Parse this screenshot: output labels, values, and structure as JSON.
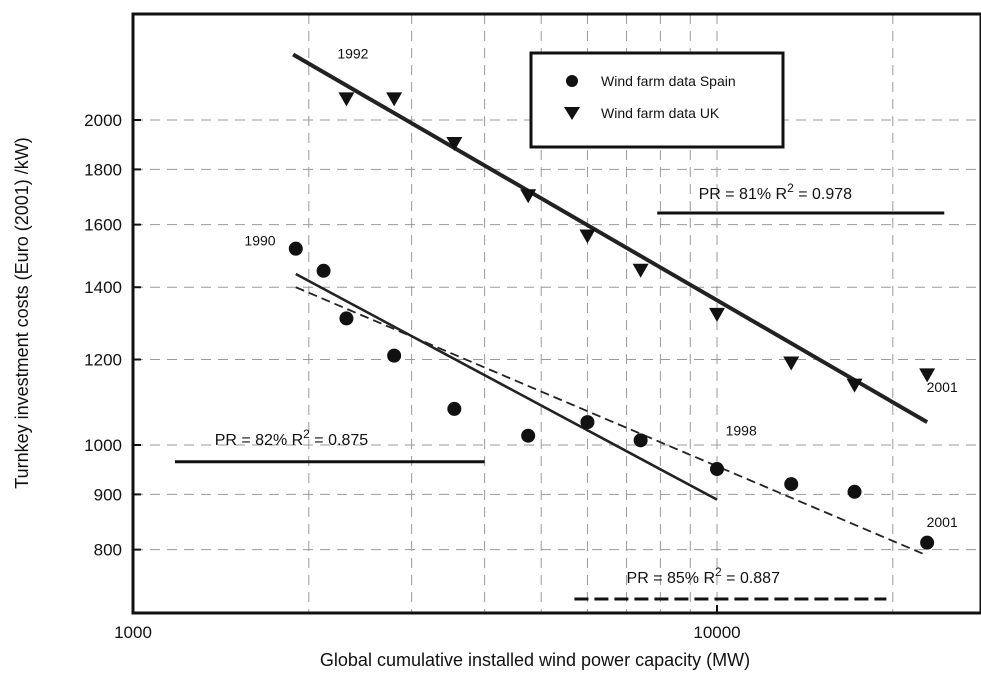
{
  "chart_data": {
    "type": "scatter",
    "xlabel": "Global cumulative installed wind power capacity (MW)",
    "ylabel": "Turnkey investment costs (Euro (2001) /kW)",
    "xscale": "log",
    "yscale": "log",
    "xlim": [
      1000,
      26000
    ],
    "ylim": [
      700,
      2400
    ],
    "grid": true,
    "legend_position": "top-center",
    "x_ticks": [
      {
        "value": 1000,
        "label": "1000"
      },
      {
        "value": 10000,
        "label": "10000"
      }
    ],
    "y_ticks": [
      {
        "value": 800,
        "label": "800"
      },
      {
        "value": 900,
        "label": "900"
      },
      {
        "value": 1000,
        "label": "1000"
      },
      {
        "value": 1200,
        "label": "1200"
      },
      {
        "value": 1400,
        "label": "1400"
      },
      {
        "value": 1600,
        "label": "1600"
      },
      {
        "value": 1800,
        "label": "1800"
      },
      {
        "value": 2000,
        "label": "2000"
      }
    ],
    "series": [
      {
        "name": "Wind farm data Spain",
        "marker": "circle",
        "points": [
          {
            "x": 1900,
            "y": 1520
          },
          {
            "x": 2120,
            "y": 1450
          },
          {
            "x": 2320,
            "y": 1310
          },
          {
            "x": 2800,
            "y": 1210
          },
          {
            "x": 3550,
            "y": 1080
          },
          {
            "x": 4750,
            "y": 1020
          },
          {
            "x": 6000,
            "y": 1050
          },
          {
            "x": 7400,
            "y": 1010
          },
          {
            "x": 10000,
            "y": 950
          },
          {
            "x": 13400,
            "y": 920
          },
          {
            "x": 17200,
            "y": 905
          },
          {
            "x": 22900,
            "y": 812
          }
        ]
      },
      {
        "name": "Wind farm data UK",
        "marker": "triangle-down",
        "points": [
          {
            "x": 2320,
            "y": 2090
          },
          {
            "x": 2800,
            "y": 2090
          },
          {
            "x": 3550,
            "y": 1900
          },
          {
            "x": 4750,
            "y": 1700
          },
          {
            "x": 6000,
            "y": 1560
          },
          {
            "x": 7400,
            "y": 1450
          },
          {
            "x": 10000,
            "y": 1320
          },
          {
            "x": 13400,
            "y": 1190
          },
          {
            "x": 17200,
            "y": 1135
          },
          {
            "x": 22900,
            "y": 1160
          }
        ]
      }
    ],
    "fit_lines": [
      {
        "style": "solid-thick",
        "from": {
          "x": 1880,
          "y": 2300
        },
        "to": {
          "x": 22900,
          "y": 1050
        }
      },
      {
        "style": "solid",
        "from": {
          "x": 1900,
          "y": 1440
        },
        "to": {
          "x": 10000,
          "y": 890
        }
      },
      {
        "style": "dashed",
        "from": {
          "x": 1900,
          "y": 1400
        },
        "to": {
          "x": 22900,
          "y": 790
        }
      }
    ],
    "annotations": [
      {
        "text": "1992",
        "x": 2380,
        "y": 2280
      },
      {
        "text": "1990",
        "x": 1650,
        "y": 1530
      },
      {
        "text": "1998",
        "x": 11000,
        "y": 1020
      },
      {
        "text": "2001",
        "x": 24300,
        "y": 1120
      },
      {
        "text": "2001",
        "x": 24300,
        "y": 840
      }
    ],
    "pr_labels": [
      {
        "text_main": "PR = 81% R",
        "sup": "2",
        "text_tail": " = 0.978",
        "line_style": "solid",
        "line_x": [
          7900,
          24500
        ],
        "line_y": 1640,
        "text_x": 9300,
        "text_y": 1690
      },
      {
        "text_main": "PR = 82% R",
        "sup": "2",
        "text_tail": " = 0.875",
        "line_style": "solid",
        "line_x": [
          1180,
          4000
        ],
        "line_y": 965,
        "text_x": 1380,
        "text_y": 1000
      },
      {
        "text_main": "PR = 85% R",
        "sup": "2",
        "text_tail": " = 0.887",
        "line_style": "dashed",
        "line_x": [
          5700,
          19500
        ],
        "line_y": 720,
        "text_x": 7000,
        "text_y": 745
      }
    ]
  }
}
